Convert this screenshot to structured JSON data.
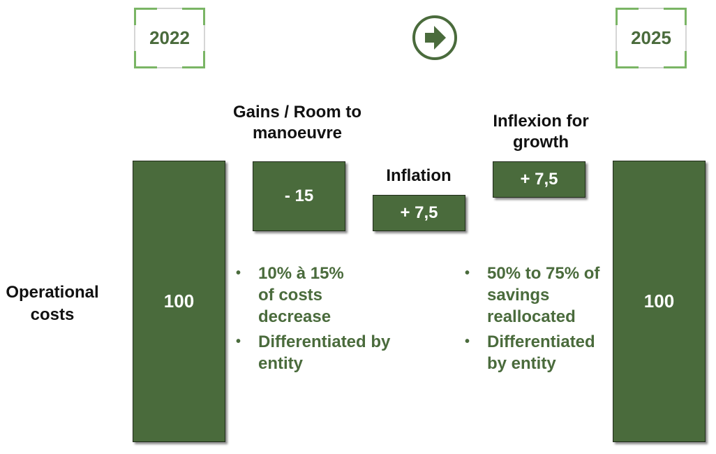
{
  "header": {
    "year_start": "2022",
    "year_end": "2025"
  },
  "row_label": "Operational costs",
  "chart_data": {
    "type": "bar",
    "categories": [
      "2022",
      "Gains / Room to manoeuvre",
      "Inflation",
      "Inflexion for growth",
      "2025"
    ],
    "values": [
      100,
      -15,
      7.5,
      7.5,
      100
    ],
    "value_labels": [
      "100",
      "- 15",
      "+ 7,5",
      "+ 7,5",
      "100"
    ],
    "title": "",
    "xlabel": "",
    "ylabel": "Operational costs"
  },
  "steps": {
    "gains_title": "Gains / Room to manoeuvre",
    "inflation_title": "Inflation",
    "growth_title": "Inflexion for growth"
  },
  "notes": {
    "gains": [
      "10% à 15% of costs decrease",
      "Differentiated by entity"
    ],
    "growth": [
      "50% to 75% of savings reallocated",
      "Differentiated by entity"
    ]
  },
  "colors": {
    "bar_fill": "#4a6b3c",
    "accent_text": "#4a6b3c",
    "corner_accent": "#7ab565"
  },
  "icons": {
    "arrow": "arrow-right-circle-icon"
  }
}
